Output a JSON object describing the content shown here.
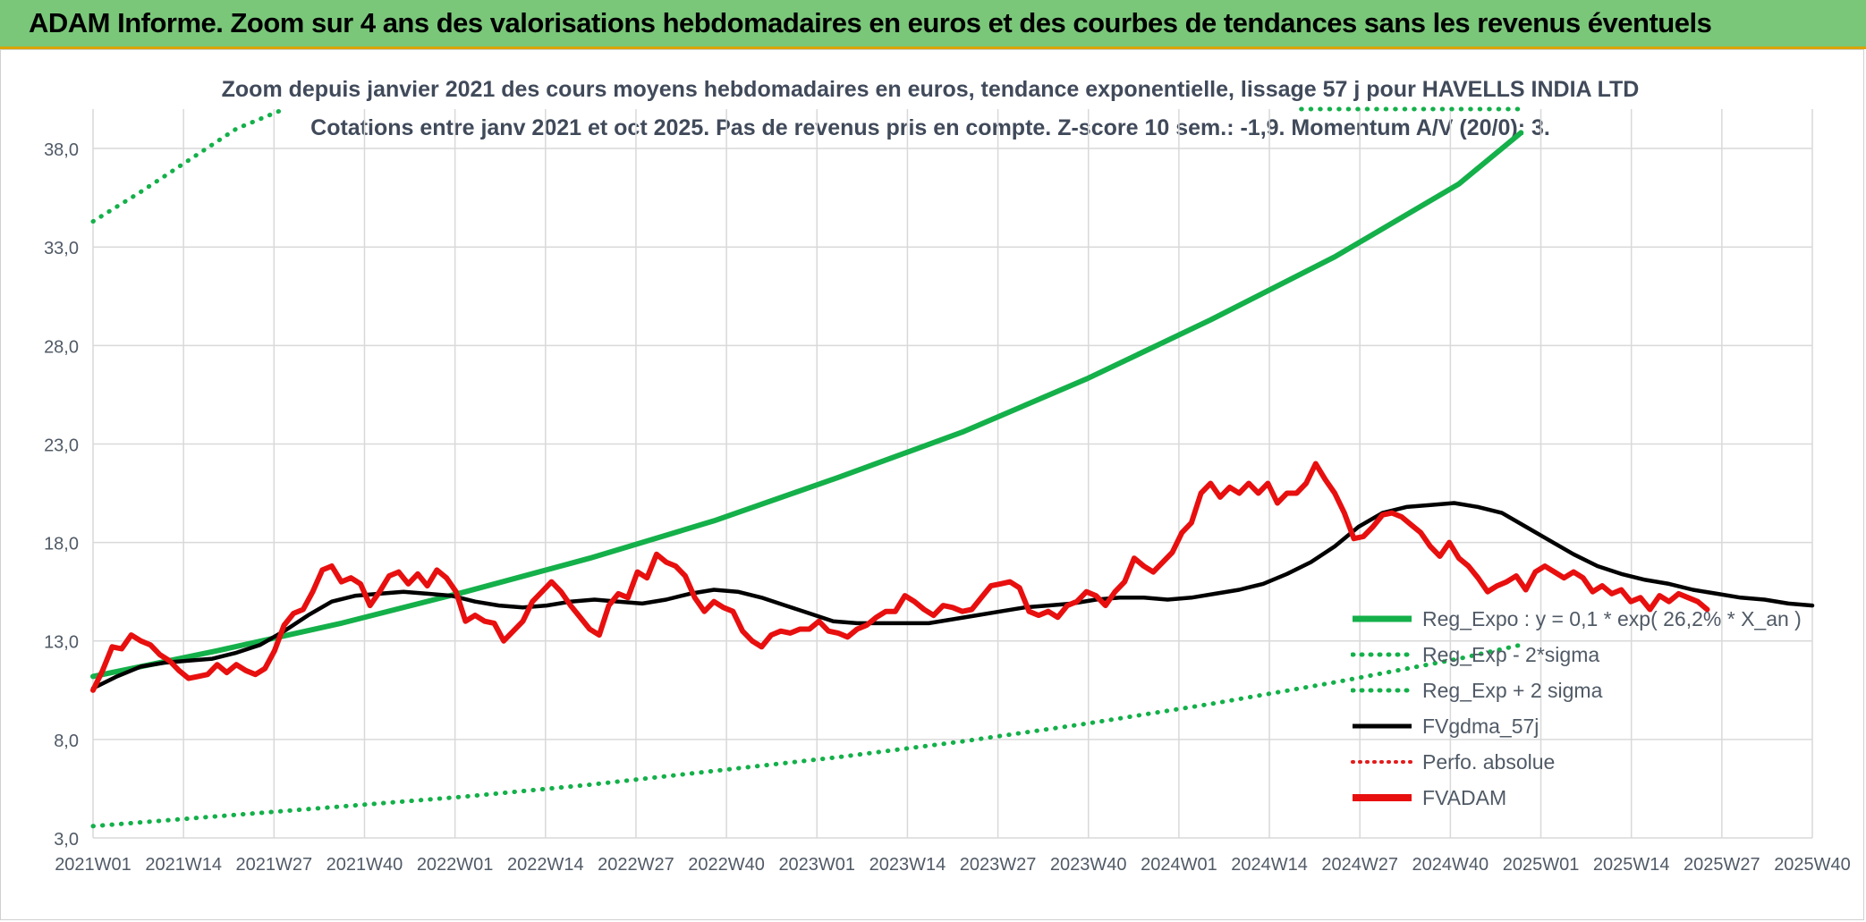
{
  "header": {
    "title": "ADAM Informe. Zoom sur 4 ans des valorisations hebdomadaires en euros et des courbes de tendances sans les revenus éventuels"
  },
  "chart_data": {
    "type": "line",
    "title": "Zoom depuis janvier 2021 des cours moyens hebdomadaires en euros, tendance exponentielle, lissage 57 j pour HAVELLS INDIA LTD",
    "subtitle": "Cotations entre janv 2021 et oct 2025. Pas de revenus pris en compte. Z-score 10 sem.: -1,9. Momentum A/V (20/0): 3.",
    "xlabel": "",
    "ylabel": "",
    "ylim": [
      3.0,
      40.0
    ],
    "yticks": [
      "3,0",
      "8,0",
      "13,0",
      "18,0",
      "23,0",
      "28,0",
      "33,0",
      "38,0"
    ],
    "ytick_values": [
      3,
      8,
      13,
      18,
      23,
      28,
      33,
      38
    ],
    "xticks": [
      "2021W01",
      "2021W14",
      "2021W27",
      "2021W40",
      "2022W01",
      "2022W14",
      "2022W27",
      "2022W40",
      "2023W01",
      "2023W14",
      "2023W27",
      "2023W40",
      "2024W01",
      "2024W14",
      "2024W27",
      "2024W40",
      "2025W01",
      "2025W14",
      "2025W27",
      "2025W40"
    ],
    "grid": true,
    "legend_position": "bottom-right",
    "series": [
      {
        "name": "Reg_Expo : y = 0,1 * exp( 26,2% *  X_an )",
        "color": "#14b04a",
        "style": "solid",
        "points": [
          [
            0,
            11.2
          ],
          [
            26,
            12.5
          ],
          [
            52,
            13.9
          ],
          [
            78,
            15.5
          ],
          [
            104,
            17.2
          ],
          [
            130,
            19.1
          ],
          [
            156,
            21.3
          ],
          [
            182,
            23.6
          ],
          [
            208,
            26.3
          ],
          [
            234,
            29.3
          ],
          [
            260,
            32.5
          ],
          [
            286,
            36.2
          ],
          [
            299,
            38.8
          ]
        ]
      },
      {
        "name": "Reg_Exp - 2*sigma",
        "color": "#14b04a",
        "style": "dotted",
        "points": [
          [
            0,
            3.6
          ],
          [
            26,
            4.1
          ],
          [
            52,
            4.6
          ],
          [
            78,
            5.1
          ],
          [
            104,
            5.7
          ],
          [
            130,
            6.4
          ],
          [
            156,
            7.1
          ],
          [
            182,
            7.9
          ],
          [
            208,
            8.8
          ],
          [
            234,
            9.8
          ],
          [
            260,
            10.9
          ],
          [
            286,
            12.1
          ],
          [
            299,
            12.8
          ]
        ]
      },
      {
        "name": "Reg_Exp + 2 sigma",
        "color": "#14b04a",
        "style": "dotted",
        "points": [
          [
            0,
            34.3
          ],
          [
            10,
            35.8
          ],
          [
            20,
            37.4
          ],
          [
            30,
            39.0
          ],
          [
            40,
            40.0
          ]
        ],
        "points_right": [
          [
            253,
            40.0
          ],
          [
            299,
            40.0
          ]
        ]
      },
      {
        "name": "FVgdma_57j",
        "color": "#000000",
        "style": "solid",
        "points": [
          [
            0,
            10.6
          ],
          [
            5,
            11.2
          ],
          [
            10,
            11.7
          ],
          [
            15,
            11.9
          ],
          [
            20,
            12.0
          ],
          [
            25,
            12.1
          ],
          [
            30,
            12.4
          ],
          [
            35,
            12.8
          ],
          [
            40,
            13.5
          ],
          [
            45,
            14.3
          ],
          [
            50,
            15.0
          ],
          [
            55,
            15.3
          ],
          [
            60,
            15.4
          ],
          [
            65,
            15.5
          ],
          [
            70,
            15.4
          ],
          [
            75,
            15.3
          ],
          [
            80,
            15.0
          ],
          [
            85,
            14.8
          ],
          [
            90,
            14.7
          ],
          [
            95,
            14.8
          ],
          [
            100,
            15.0
          ],
          [
            105,
            15.1
          ],
          [
            110,
            15.0
          ],
          [
            115,
            14.9
          ],
          [
            120,
            15.1
          ],
          [
            125,
            15.4
          ],
          [
            130,
            15.6
          ],
          [
            135,
            15.5
          ],
          [
            140,
            15.2
          ],
          [
            145,
            14.8
          ],
          [
            150,
            14.4
          ],
          [
            155,
            14.0
          ],
          [
            160,
            13.9
          ],
          [
            165,
            13.9
          ],
          [
            170,
            13.9
          ],
          [
            175,
            13.9
          ],
          [
            180,
            14.1
          ],
          [
            185,
            14.3
          ],
          [
            190,
            14.5
          ],
          [
            195,
            14.7
          ],
          [
            200,
            14.8
          ],
          [
            205,
            14.9
          ],
          [
            210,
            15.1
          ],
          [
            215,
            15.2
          ],
          [
            220,
            15.2
          ],
          [
            225,
            15.1
          ],
          [
            230,
            15.2
          ],
          [
            235,
            15.4
          ],
          [
            240,
            15.6
          ],
          [
            245,
            15.9
          ],
          [
            250,
            16.4
          ],
          [
            255,
            17.0
          ],
          [
            260,
            17.8
          ],
          [
            265,
            18.8
          ],
          [
            270,
            19.5
          ],
          [
            275,
            19.8
          ],
          [
            280,
            19.9
          ],
          [
            285,
            20.0
          ],
          [
            290,
            19.8
          ],
          [
            295,
            19.5
          ],
          [
            300,
            18.8
          ],
          [
            305,
            18.1
          ],
          [
            310,
            17.4
          ],
          [
            315,
            16.8
          ],
          [
            320,
            16.4
          ],
          [
            325,
            16.1
          ],
          [
            330,
            15.9
          ],
          [
            335,
            15.6
          ],
          [
            340,
            15.4
          ],
          [
            345,
            15.2
          ],
          [
            350,
            15.1
          ],
          [
            355,
            14.9
          ],
          [
            360,
            14.8
          ]
        ]
      },
      {
        "name": "Perfo. absolue",
        "color": "#e31b1b",
        "style": "dotted",
        "points": []
      },
      {
        "name": "FVADAM",
        "color": "#e80f0f",
        "style": "solid",
        "points": [
          [
            0,
            10.5
          ],
          [
            2,
            11.5
          ],
          [
            4,
            12.7
          ],
          [
            6,
            12.6
          ],
          [
            8,
            13.3
          ],
          [
            10,
            13.0
          ],
          [
            12,
            12.8
          ],
          [
            14,
            12.3
          ],
          [
            16,
            12.0
          ],
          [
            18,
            11.5
          ],
          [
            20,
            11.1
          ],
          [
            22,
            11.2
          ],
          [
            24,
            11.3
          ],
          [
            26,
            11.8
          ],
          [
            28,
            11.4
          ],
          [
            30,
            11.8
          ],
          [
            32,
            11.5
          ],
          [
            34,
            11.3
          ],
          [
            36,
            11.6
          ],
          [
            38,
            12.5
          ],
          [
            40,
            13.8
          ],
          [
            42,
            14.4
          ],
          [
            44,
            14.6
          ],
          [
            46,
            15.5
          ],
          [
            48,
            16.6
          ],
          [
            50,
            16.8
          ],
          [
            52,
            16.0
          ],
          [
            54,
            16.2
          ],
          [
            56,
            15.9
          ],
          [
            58,
            14.8
          ],
          [
            60,
            15.5
          ],
          [
            62,
            16.3
          ],
          [
            64,
            16.5
          ],
          [
            66,
            15.9
          ],
          [
            68,
            16.4
          ],
          [
            70,
            15.8
          ],
          [
            72,
            16.6
          ],
          [
            74,
            16.2
          ],
          [
            76,
            15.5
          ],
          [
            78,
            14.0
          ],
          [
            80,
            14.3
          ],
          [
            82,
            14.0
          ],
          [
            84,
            13.9
          ],
          [
            86,
            13.0
          ],
          [
            88,
            13.5
          ],
          [
            90,
            14.0
          ],
          [
            92,
            15.0
          ],
          [
            94,
            15.5
          ],
          [
            96,
            16.0
          ],
          [
            98,
            15.5
          ],
          [
            100,
            14.8
          ],
          [
            102,
            14.2
          ],
          [
            104,
            13.6
          ],
          [
            106,
            13.3
          ],
          [
            108,
            14.8
          ],
          [
            110,
            15.4
          ],
          [
            112,
            15.2
          ],
          [
            114,
            16.5
          ],
          [
            116,
            16.2
          ],
          [
            118,
            17.4
          ],
          [
            120,
            17.0
          ],
          [
            122,
            16.8
          ],
          [
            124,
            16.3
          ],
          [
            126,
            15.2
          ],
          [
            128,
            14.5
          ],
          [
            130,
            15.0
          ],
          [
            132,
            14.7
          ],
          [
            134,
            14.5
          ],
          [
            136,
            13.5
          ],
          [
            138,
            13.0
          ],
          [
            140,
            12.7
          ],
          [
            142,
            13.3
          ],
          [
            144,
            13.5
          ],
          [
            146,
            13.4
          ],
          [
            148,
            13.6
          ],
          [
            150,
            13.6
          ],
          [
            152,
            14.0
          ],
          [
            154,
            13.5
          ],
          [
            156,
            13.4
          ],
          [
            158,
            13.2
          ],
          [
            160,
            13.6
          ],
          [
            162,
            13.8
          ],
          [
            164,
            14.2
          ],
          [
            166,
            14.5
          ],
          [
            168,
            14.5
          ],
          [
            170,
            15.3
          ],
          [
            172,
            15.0
          ],
          [
            174,
            14.6
          ],
          [
            176,
            14.3
          ],
          [
            178,
            14.8
          ],
          [
            180,
            14.7
          ],
          [
            182,
            14.5
          ],
          [
            184,
            14.6
          ],
          [
            186,
            15.2
          ],
          [
            188,
            15.8
          ],
          [
            190,
            15.9
          ],
          [
            192,
            16.0
          ],
          [
            194,
            15.7
          ],
          [
            196,
            14.5
          ],
          [
            198,
            14.3
          ],
          [
            200,
            14.5
          ],
          [
            202,
            14.2
          ],
          [
            204,
            14.8
          ],
          [
            206,
            15.0
          ],
          [
            208,
            15.5
          ],
          [
            210,
            15.3
          ],
          [
            212,
            14.8
          ],
          [
            214,
            15.5
          ],
          [
            216,
            16.0
          ],
          [
            218,
            17.2
          ],
          [
            220,
            16.8
          ],
          [
            222,
            16.5
          ],
          [
            224,
            17.0
          ],
          [
            226,
            17.5
          ],
          [
            228,
            18.5
          ],
          [
            230,
            19.0
          ],
          [
            232,
            20.5
          ],
          [
            234,
            21.0
          ],
          [
            236,
            20.3
          ],
          [
            238,
            20.8
          ],
          [
            240,
            20.5
          ],
          [
            242,
            21.0
          ],
          [
            244,
            20.5
          ],
          [
            246,
            21.0
          ],
          [
            248,
            20.0
          ],
          [
            250,
            20.5
          ],
          [
            252,
            20.5
          ],
          [
            254,
            21.0
          ],
          [
            256,
            22.0
          ],
          [
            258,
            21.2
          ],
          [
            260,
            20.5
          ],
          [
            262,
            19.5
          ],
          [
            264,
            18.2
          ],
          [
            266,
            18.3
          ],
          [
            268,
            18.8
          ],
          [
            270,
            19.4
          ],
          [
            272,
            19.5
          ],
          [
            274,
            19.3
          ],
          [
            276,
            18.9
          ],
          [
            278,
            18.5
          ],
          [
            280,
            17.8
          ],
          [
            282,
            17.3
          ],
          [
            284,
            18.0
          ],
          [
            286,
            17.2
          ],
          [
            288,
            16.8
          ],
          [
            290,
            16.2
          ],
          [
            292,
            15.5
          ],
          [
            294,
            15.8
          ],
          [
            296,
            16.0
          ],
          [
            298,
            16.3
          ],
          [
            300,
            15.6
          ],
          [
            302,
            16.5
          ],
          [
            304,
            16.8
          ],
          [
            306,
            16.5
          ],
          [
            308,
            16.2
          ],
          [
            310,
            16.5
          ],
          [
            312,
            16.2
          ],
          [
            314,
            15.5
          ],
          [
            316,
            15.8
          ],
          [
            318,
            15.4
          ],
          [
            320,
            15.6
          ],
          [
            322,
            15.0
          ],
          [
            324,
            15.2
          ],
          [
            326,
            14.6
          ],
          [
            328,
            15.3
          ],
          [
            330,
            15.0
          ],
          [
            332,
            15.4
          ],
          [
            334,
            15.2
          ],
          [
            336,
            15.0
          ],
          [
            338,
            14.6
          ]
        ]
      }
    ]
  }
}
